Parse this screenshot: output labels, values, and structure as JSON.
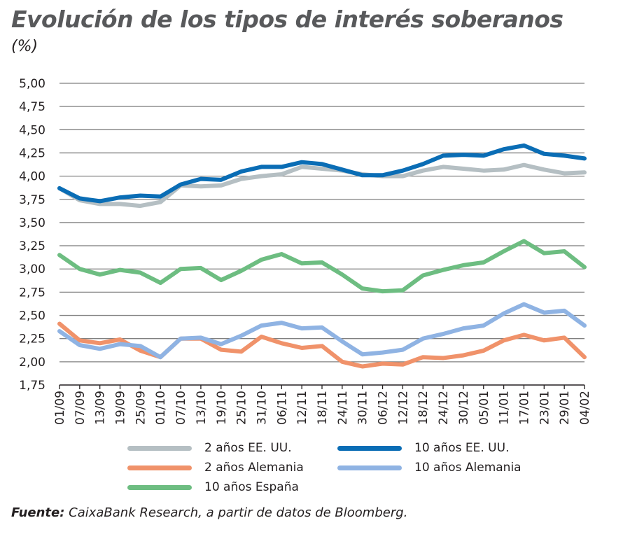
{
  "chart_data": {
    "type": "line",
    "title": "Evolución de los tipos de interés soberanos",
    "subtitle": "(%)",
    "xlabel": "",
    "ylabel": "",
    "ylim": [
      1.75,
      5.0
    ],
    "yticks": [
      "5,00",
      "4,75",
      "4,50",
      "4,25",
      "4,00",
      "3,75",
      "3,50",
      "3,25",
      "3,00",
      "2,75",
      "2,50",
      "2,25",
      "2,00",
      "1,75"
    ],
    "grid": true,
    "legend_position": "bottom",
    "x": [
      "01/09",
      "07/09",
      "13/09",
      "19/09",
      "25/09",
      "01/10",
      "07/10",
      "13/10",
      "19/10",
      "25/10",
      "31/10",
      "06/11",
      "12/11",
      "18/11",
      "24/11",
      "30/11",
      "06/12",
      "12/12",
      "18/12",
      "24/12",
      "30/12",
      "05/01",
      "11/01",
      "17/01",
      "23/01",
      "29/01",
      "04/02"
    ],
    "series": [
      {
        "name": "2 años EE. UU.",
        "color": "#b5bfc3",
        "values": [
          3.87,
          3.74,
          3.7,
          3.7,
          3.68,
          3.72,
          3.9,
          3.89,
          3.9,
          3.97,
          4.0,
          4.02,
          4.1,
          4.08,
          4.06,
          4.02,
          4.0,
          4.0,
          4.06,
          4.1,
          4.08,
          4.06,
          4.07,
          4.12,
          4.07,
          4.03,
          4.04
        ]
      },
      {
        "name": "10 años EE. UU.",
        "color": "#0a6db5",
        "values": [
          3.87,
          3.76,
          3.73,
          3.77,
          3.79,
          3.78,
          3.91,
          3.97,
          3.96,
          4.05,
          4.1,
          4.1,
          4.15,
          4.13,
          4.07,
          4.01,
          4.01,
          4.06,
          4.13,
          4.22,
          4.23,
          4.22,
          4.29,
          4.33,
          4.24,
          4.22,
          4.19
        ]
      },
      {
        "name": "2 años Alemania",
        "color": "#f0926a",
        "values": [
          2.41,
          2.23,
          2.2,
          2.24,
          2.12,
          2.05,
          2.25,
          2.25,
          2.13,
          2.11,
          2.27,
          2.2,
          2.15,
          2.17,
          2.0,
          1.95,
          1.98,
          1.97,
          2.05,
          2.04,
          2.07,
          2.12,
          2.23,
          2.29,
          2.23,
          2.26,
          2.05
        ]
      },
      {
        "name": "10 años Alemania",
        "color": "#8fb3e3",
        "values": [
          2.33,
          2.18,
          2.14,
          2.19,
          2.17,
          2.05,
          2.25,
          2.26,
          2.19,
          2.28,
          2.39,
          2.42,
          2.36,
          2.37,
          2.22,
          2.08,
          2.1,
          2.13,
          2.25,
          2.3,
          2.36,
          2.39,
          2.52,
          2.62,
          2.53,
          2.55,
          2.39
        ]
      },
      {
        "name": "10 años España",
        "color": "#6dbd81",
        "values": [
          3.15,
          3.0,
          2.94,
          2.99,
          2.96,
          2.85,
          3.0,
          3.01,
          2.88,
          2.98,
          3.1,
          3.16,
          3.06,
          3.07,
          2.94,
          2.79,
          2.76,
          2.77,
          2.93,
          2.99,
          3.04,
          3.07,
          3.19,
          3.3,
          3.17,
          3.19,
          3.02
        ]
      }
    ]
  },
  "source": {
    "label": "Fuente:",
    "text": " CaixaBank Research, a partir de datos de Bloomberg."
  }
}
